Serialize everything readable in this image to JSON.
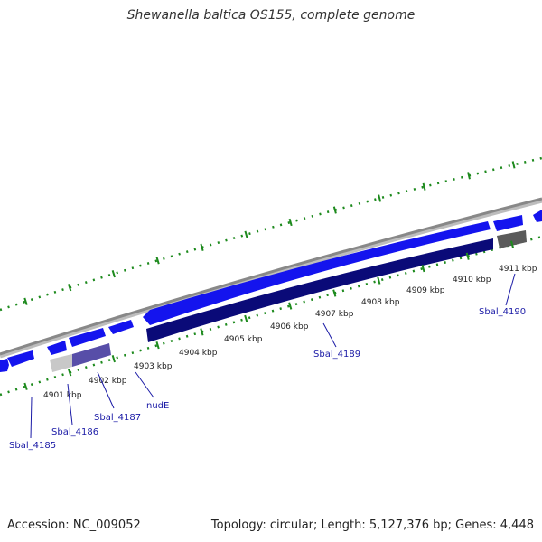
{
  "title": "Shewanella baltica OS155, complete genome",
  "footer": {
    "accession": "Accession: NC_009052",
    "summary": "Topology: circular; Length: 5,127,376 bp; Genes: 4,448"
  },
  "colors": {
    "gene_forward": "#1414ee",
    "gene_reverse": "#0a0a78",
    "backbone": "#8c8c8c",
    "dots": "#1d8a1d",
    "label": "#1a1aa6"
  },
  "ticks": [
    {
      "label": "4901 kbp"
    },
    {
      "label": "4902 kbp"
    },
    {
      "label": "4903 kbp"
    },
    {
      "label": "4904 kbp"
    },
    {
      "label": "4905 kbp"
    },
    {
      "label": "4906 kbp"
    },
    {
      "label": "4907 kbp"
    },
    {
      "label": "4908 kbp"
    },
    {
      "label": "4909 kbp"
    },
    {
      "label": "4910 kbp"
    },
    {
      "label": "4911 kbp"
    }
  ],
  "gene_labels": [
    {
      "name": "Sbal_4185"
    },
    {
      "name": "Sbal_4186"
    },
    {
      "name": "Sbal_4187"
    },
    {
      "name": "nudE"
    },
    {
      "name": "Sbal_4189"
    },
    {
      "name": "Sbal_4190"
    }
  ]
}
